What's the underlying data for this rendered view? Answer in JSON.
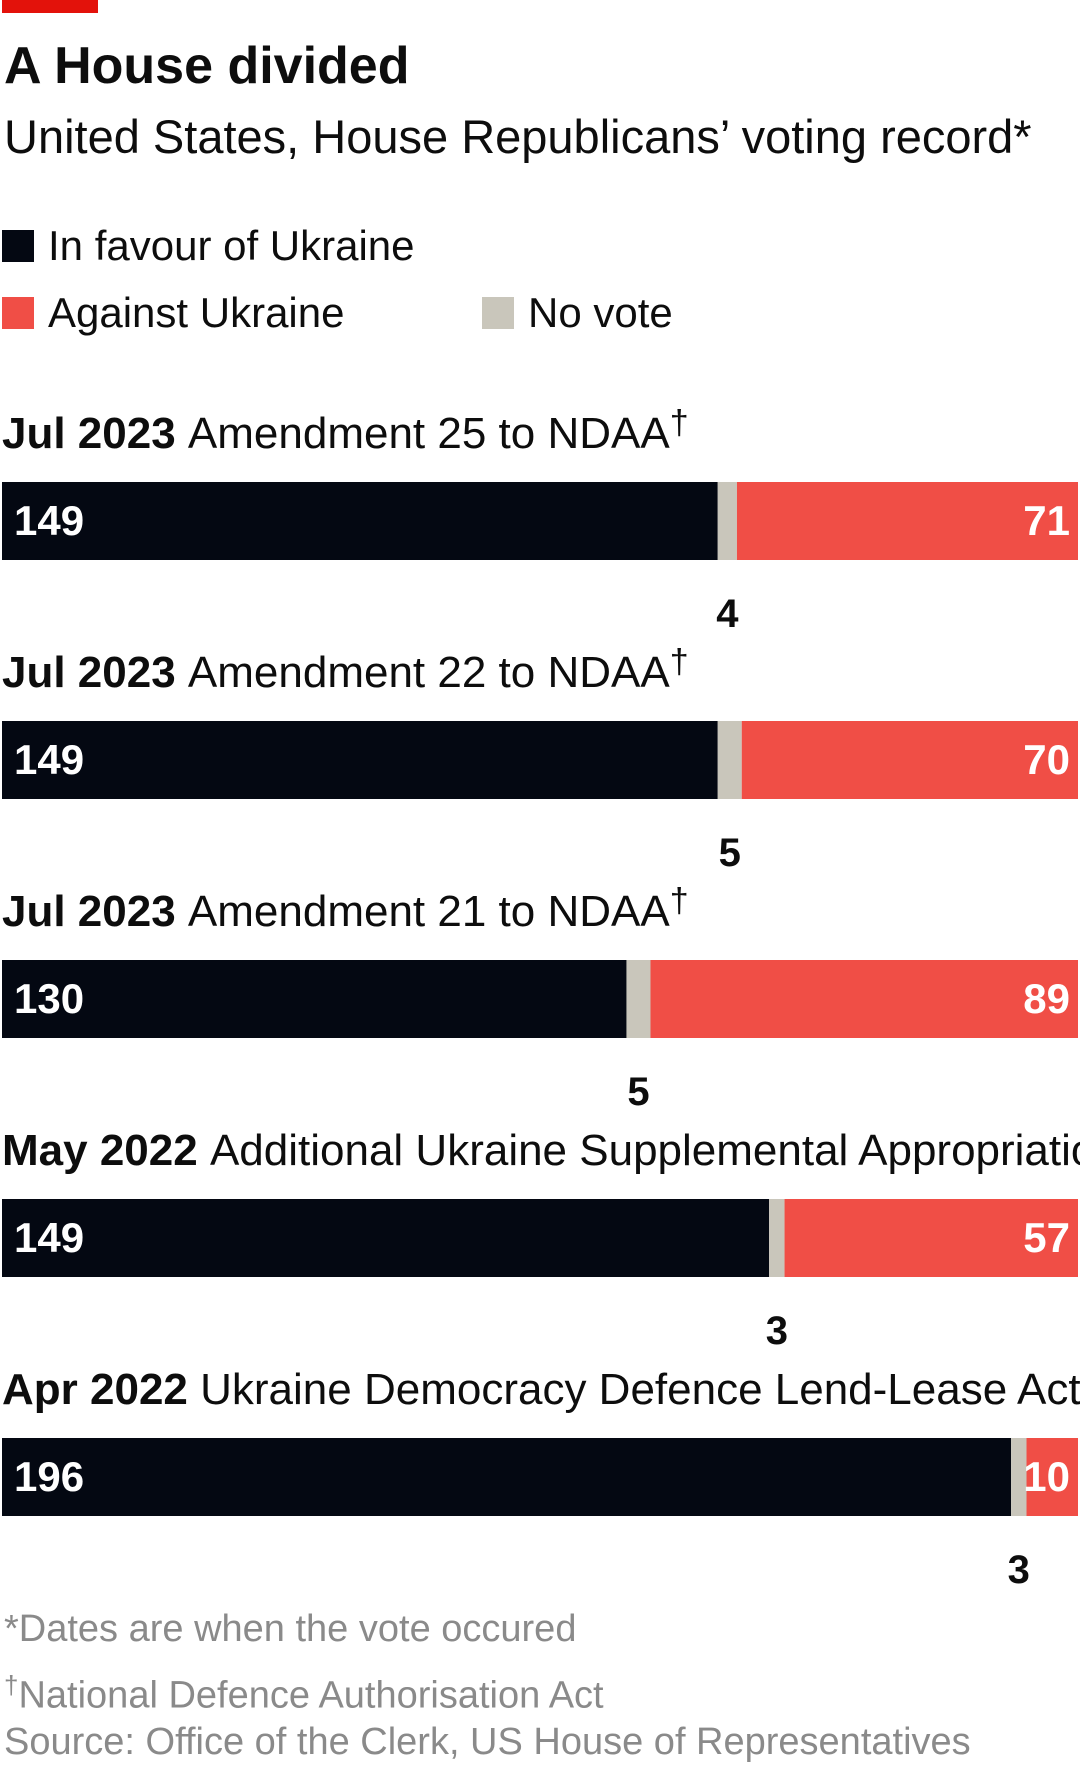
{
  "header": {
    "title": "A House divided",
    "subtitle": "United States, House Republicans’ voting record*"
  },
  "colors": {
    "accent": "#e3120b",
    "favour": "#040812",
    "against": "#f04e46",
    "novote": "#c9c6bb"
  },
  "legend": {
    "favour": "In favour of Ukraine",
    "against": "Against Ukraine",
    "novote": "No vote"
  },
  "chart_data": {
    "type": "bar",
    "orientation": "horizontal-stacked-100",
    "series_order": [
      "In favour of Ukraine",
      "No vote",
      "Against Ukraine"
    ],
    "rows": [
      {
        "date": "Jul 2023",
        "name": "Amendment 25 to NDAA",
        "dagger": "†",
        "favour": 149,
        "novote": 4,
        "against": 71
      },
      {
        "date": "Jul 2023",
        "name": "Amendment 22 to NDAA",
        "dagger": "†",
        "favour": 149,
        "novote": 5,
        "against": 70
      },
      {
        "date": "Jul 2023",
        "name": "Amendment 21 to NDAA",
        "dagger": "†",
        "favour": 130,
        "novote": 5,
        "against": 89
      },
      {
        "date": "May 2022",
        "name": "Additional Ukraine Supplemental Appropriations Act",
        "dagger": "",
        "favour": 149,
        "novote": 3,
        "against": 57
      },
      {
        "date": "Apr 2022",
        "name": "Ukraine Democracy Defence Lend-Lease Act",
        "dagger": "",
        "favour": 196,
        "novote": 3,
        "against": 10
      }
    ]
  },
  "footnotes": {
    "note1": "*Dates are when the vote occured",
    "note2_mark": "†",
    "note2": "National Defence Authorisation Act",
    "source": "Source: Office of the Clerk, US House of Representatives"
  }
}
